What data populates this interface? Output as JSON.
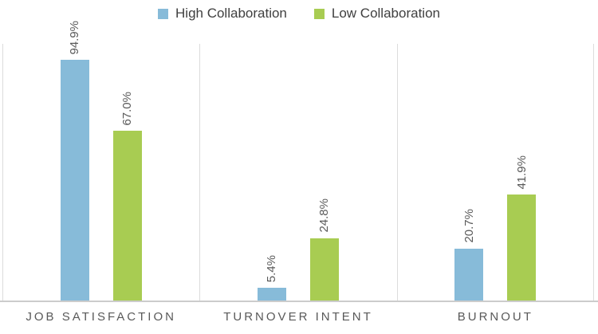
{
  "chart_data": {
    "type": "bar",
    "categories": [
      "JOB SATISFACTION",
      "TURNOVER INTENT",
      "BURNOUT"
    ],
    "series": [
      {
        "name": "High Collaboration",
        "color": "#87BBD9",
        "values": [
          94.9,
          5.4,
          20.7
        ],
        "data_labels": [
          "94.9%",
          "5.4%",
          "20.7%"
        ]
      },
      {
        "name": "Low Collaboration",
        "color": "#A8CC52",
        "values": [
          67.0,
          24.8,
          41.9
        ],
        "data_labels": [
          "67.0%",
          "24.8%",
          "41.9%"
        ]
      }
    ],
    "title": "",
    "xlabel": "",
    "ylabel": "",
    "ylim": [
      0,
      100
    ],
    "legend_position": "top",
    "grid": "vertical category separators only",
    "data_label_orientation": "rotated-90",
    "axis_line_color": "#CCCCCC",
    "separator_color": "#DCDCDC",
    "label_color": "#595959",
    "legend_text_color": "#3F3F3F"
  }
}
